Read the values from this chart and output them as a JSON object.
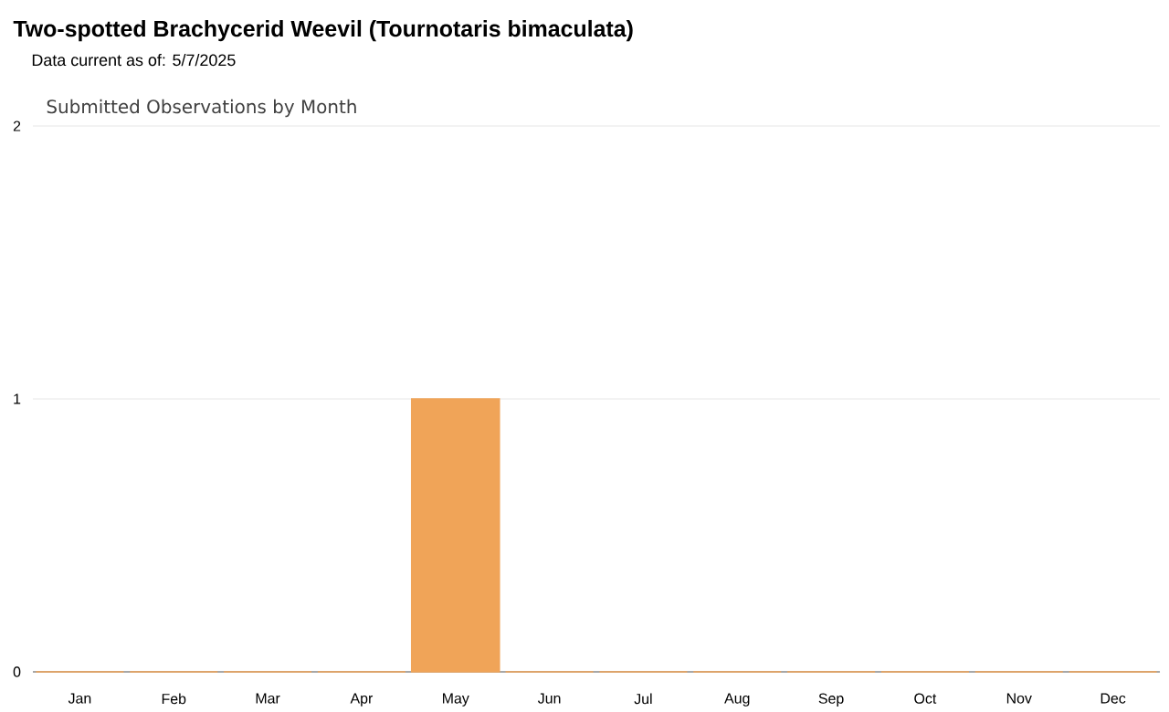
{
  "chart_data": {
    "type": "bar",
    "title": "Two-spotted Brachycerid Weevil   (Tournotaris bimaculata)",
    "subtitle": "Data current as of: 5/7/2025",
    "annotations": [
      "Submitted Observations by Month"
    ],
    "categories": [
      "Jan",
      "Feb",
      "Mar",
      "Apr",
      "May",
      "Jun",
      "Jul",
      "Aug",
      "Sep",
      "Oct",
      "Nov",
      "Dec"
    ],
    "values": [
      0,
      0,
      0,
      0,
      1,
      0,
      0,
      0,
      0,
      0,
      0,
      0
    ],
    "color": "#f0a458",
    "ylim": [
      0,
      2
    ],
    "yticks": [
      0,
      1,
      2
    ],
    "grid": "y"
  }
}
